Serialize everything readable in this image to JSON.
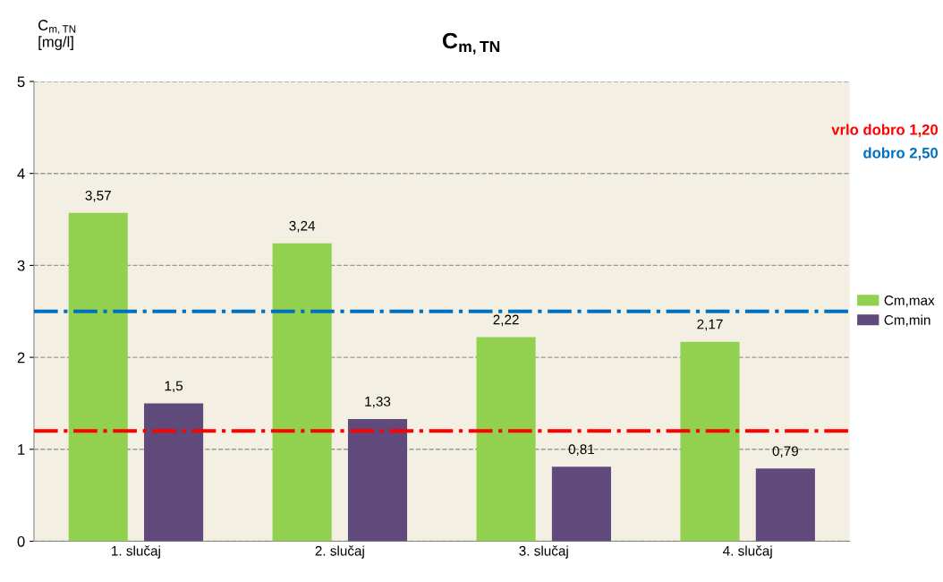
{
  "chart_data": {
    "type": "bar",
    "title": "C$_{m,TN}$",
    "ylabel": "C$_{m,TN}$\n[mg/l]",
    "categories": [
      "1. slučaj",
      "2. slučaj",
      "3. slučaj",
      "4. slučaj"
    ],
    "series": [
      {
        "name": "Cm,max",
        "color": "#92d050",
        "values": [
          3.57,
          3.24,
          2.22,
          2.17
        ],
        "value_labels": [
          "3,57",
          "3,24",
          "2,22",
          "2,17"
        ]
      },
      {
        "name": "Cm,min",
        "color": "#604a7b",
        "values": [
          1.5,
          1.33,
          0.81,
          0.79
        ],
        "value_labels": [
          "1,5",
          "1,33",
          "0,81",
          "0,79"
        ]
      }
    ],
    "ylim": [
      0,
      5
    ],
    "yticks": [
      0,
      1,
      2,
      3,
      4,
      5
    ],
    "grid": "y",
    "legend": "right",
    "ref_lines": [
      {
        "axis": "y",
        "value": 1.2,
        "label": "vrlo dobro 1,20",
        "color": "#ff0000",
        "line_style": "dashdot"
      },
      {
        "axis": "y",
        "value": 2.5,
        "label": "dobro 2,50",
        "color": "#0070c0",
        "line_style": "dashdot"
      }
    ]
  }
}
